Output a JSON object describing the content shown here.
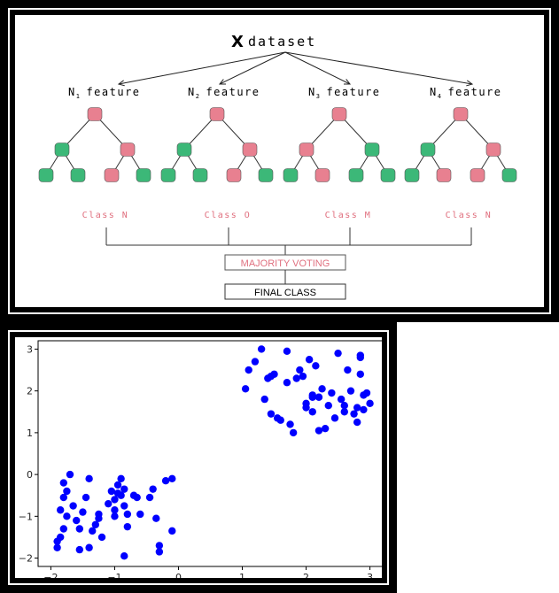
{
  "diagram": {
    "title_letter": "X",
    "title_rest": "dataset",
    "features": [
      {
        "prefix": "N",
        "sub": "1",
        "label": "feature"
      },
      {
        "prefix": "N",
        "sub": "2",
        "label": "feature"
      },
      {
        "prefix": "N",
        "sub": "3",
        "label": "feature"
      },
      {
        "prefix": "N",
        "sub": "4",
        "label": "feature"
      }
    ],
    "classes": [
      "Class N",
      "Class O",
      "Class M",
      "Class N"
    ],
    "majority_voting": "MAJORITY VOTING",
    "final_class": "FINAL CLASS",
    "colors": {
      "pink_node": "#e88090",
      "green_node": "#3cb878",
      "class_text": "#e0707f",
      "line": "#333333"
    },
    "trees": [
      {
        "root": "pink",
        "level2": [
          "green",
          "pink"
        ],
        "leaves": [
          "green",
          "green",
          "pink",
          "green"
        ]
      },
      {
        "root": "pink",
        "level2": [
          "green",
          "pink"
        ],
        "leaves": [
          "green",
          "green",
          "pink",
          "green"
        ]
      },
      {
        "root": "pink",
        "level2": [
          "pink",
          "green"
        ],
        "leaves": [
          "green",
          "pink",
          "green",
          "green"
        ]
      },
      {
        "root": "pink",
        "level2": [
          "green",
          "pink"
        ],
        "leaves": [
          "green",
          "pink",
          "pink",
          "green"
        ]
      }
    ]
  },
  "chart_data": {
    "type": "scatter",
    "title": "",
    "xlabel": "",
    "ylabel": "",
    "xlim": [
      -2.2,
      3.2
    ],
    "ylim": [
      -2.2,
      3.2
    ],
    "xticks": [
      -2,
      -1,
      0,
      1,
      2,
      3
    ],
    "yticks": [
      -2,
      -1,
      0,
      1,
      2,
      3
    ],
    "grid": false,
    "marker_color": "#0000ff",
    "series": [
      {
        "points": [
          [
            -1.9,
            -1.6
          ],
          [
            -1.85,
            -1.5
          ],
          [
            -1.8,
            -1.3
          ],
          [
            -1.75,
            -1.0
          ],
          [
            -1.85,
            -0.85
          ],
          [
            -1.8,
            -0.55
          ],
          [
            -1.75,
            -0.4
          ],
          [
            -1.7,
            0.0
          ],
          [
            -1.65,
            -0.75
          ],
          [
            -1.6,
            -1.1
          ],
          [
            -1.55,
            -1.3
          ],
          [
            -1.5,
            -0.9
          ],
          [
            -1.45,
            -0.55
          ],
          [
            -1.4,
            -0.1
          ],
          [
            -1.4,
            -1.75
          ],
          [
            -1.35,
            -1.35
          ],
          [
            -1.3,
            -1.2
          ],
          [
            -1.25,
            -0.95
          ],
          [
            -1.25,
            -1.05
          ],
          [
            -1.2,
            -1.5
          ],
          [
            -1.1,
            -0.7
          ],
          [
            -1.05,
            -0.4
          ],
          [
            -1.0,
            -0.6
          ],
          [
            -1.0,
            -0.85
          ],
          [
            -0.95,
            -0.25
          ],
          [
            -0.95,
            -0.45
          ],
          [
            -0.9,
            -0.1
          ],
          [
            -0.9,
            -0.5
          ],
          [
            -0.85,
            -0.35
          ],
          [
            -0.85,
            -0.75
          ],
          [
            -0.8,
            -0.95
          ],
          [
            -0.85,
            -1.95
          ],
          [
            -0.8,
            -1.25
          ],
          [
            -0.7,
            -0.5
          ],
          [
            -0.65,
            -0.55
          ],
          [
            -0.6,
            -0.95
          ],
          [
            -0.45,
            -0.55
          ],
          [
            -0.4,
            -0.35
          ],
          [
            -0.35,
            -1.05
          ],
          [
            -0.3,
            -1.7
          ],
          [
            -0.3,
            -1.85
          ],
          [
            -0.2,
            -0.15
          ],
          [
            -0.1,
            -0.1
          ],
          [
            -0.1,
            -1.35
          ],
          [
            -1.9,
            -1.75
          ],
          [
            -1.55,
            -1.8
          ],
          [
            -1.0,
            -1.0
          ],
          [
            -1.8,
            -0.2
          ],
          [
            1.05,
            2.05
          ],
          [
            1.1,
            2.5
          ],
          [
            1.2,
            2.7
          ],
          [
            1.3,
            3.0
          ],
          [
            1.35,
            1.8
          ],
          [
            1.4,
            2.3
          ],
          [
            1.45,
            1.45
          ],
          [
            1.5,
            2.4
          ],
          [
            1.55,
            1.35
          ],
          [
            1.6,
            1.3
          ],
          [
            1.7,
            2.95
          ],
          [
            1.7,
            2.2
          ],
          [
            1.75,
            1.2
          ],
          [
            1.8,
            1.0
          ],
          [
            1.85,
            2.3
          ],
          [
            1.9,
            2.5
          ],
          [
            1.95,
            2.35
          ],
          [
            2.0,
            1.7
          ],
          [
            2.0,
            1.6
          ],
          [
            2.05,
            2.75
          ],
          [
            2.1,
            1.9
          ],
          [
            2.1,
            1.5
          ],
          [
            2.15,
            2.6
          ],
          [
            2.2,
            1.85
          ],
          [
            2.2,
            1.05
          ],
          [
            2.25,
            2.05
          ],
          [
            2.3,
            1.1
          ],
          [
            2.35,
            1.65
          ],
          [
            2.4,
            1.95
          ],
          [
            2.45,
            1.35
          ],
          [
            2.5,
            2.9
          ],
          [
            2.55,
            1.8
          ],
          [
            2.6,
            1.5
          ],
          [
            2.65,
            2.5
          ],
          [
            2.7,
            2.0
          ],
          [
            2.75,
            1.45
          ],
          [
            2.8,
            1.6
          ],
          [
            2.85,
            2.8
          ],
          [
            2.85,
            2.85
          ],
          [
            2.9,
            1.55
          ],
          [
            2.9,
            1.9
          ],
          [
            2.95,
            1.95
          ],
          [
            3.0,
            1.7
          ],
          [
            2.85,
            2.4
          ],
          [
            2.6,
            1.65
          ],
          [
            1.45,
            2.35
          ],
          [
            2.1,
            1.85
          ],
          [
            2.8,
            1.25
          ]
        ]
      }
    ]
  }
}
